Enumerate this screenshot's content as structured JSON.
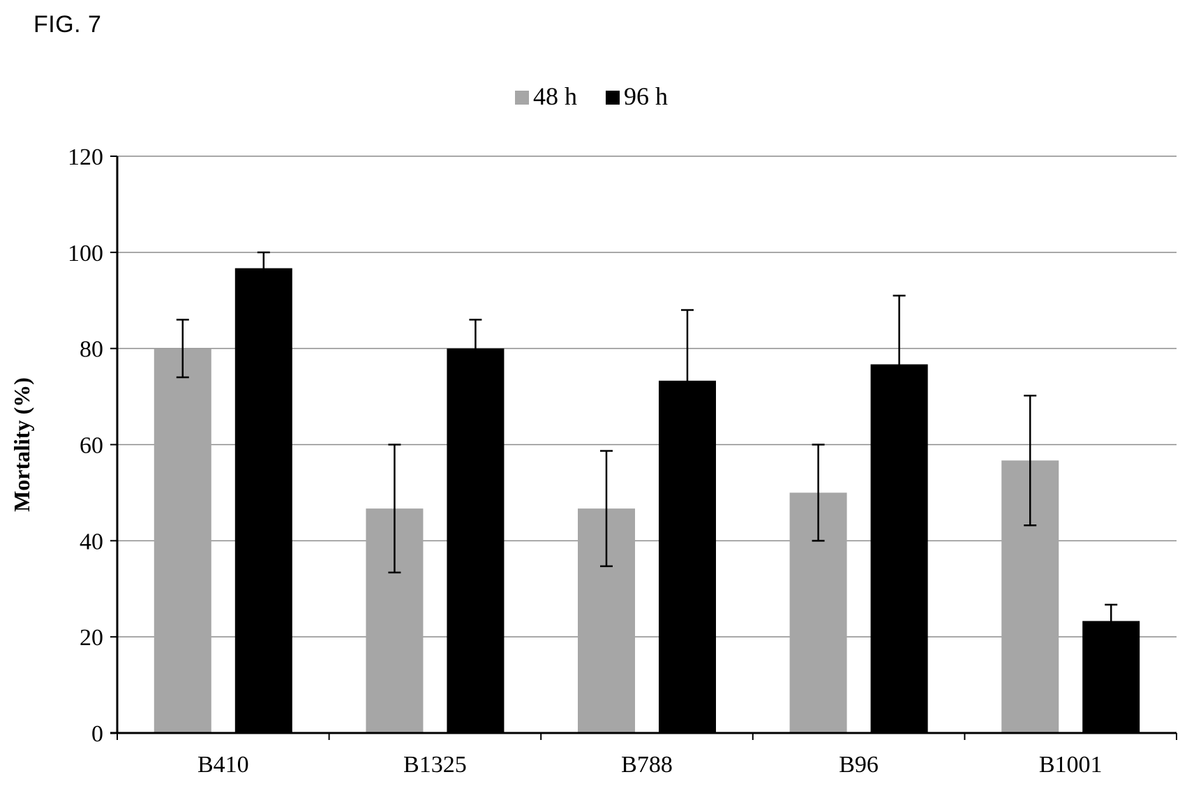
{
  "figure_label": "FIG. 7",
  "chart_data": {
    "type": "bar",
    "title": "",
    "xlabel": "",
    "ylabel": "Mortality (%)",
    "ylim": [
      0,
      120
    ],
    "yticks": [
      0,
      20,
      40,
      60,
      80,
      100,
      120
    ],
    "grid": true,
    "legend_position": "top-center",
    "categories": [
      "B410",
      "B1325",
      "B788",
      "B96",
      "B1001"
    ],
    "series": [
      {
        "name": "48 h",
        "color": "#a6a6a6",
        "values": [
          80,
          46.7,
          46.7,
          50,
          56.7
        ],
        "errors": [
          6,
          13.3,
          12,
          10,
          13.5
        ]
      },
      {
        "name": "96 h",
        "color": "#000000",
        "values": [
          96.7,
          80,
          73.3,
          76.7,
          23.3
        ],
        "errors": [
          3.3,
          6,
          14.7,
          14.3,
          3.4
        ]
      }
    ]
  }
}
